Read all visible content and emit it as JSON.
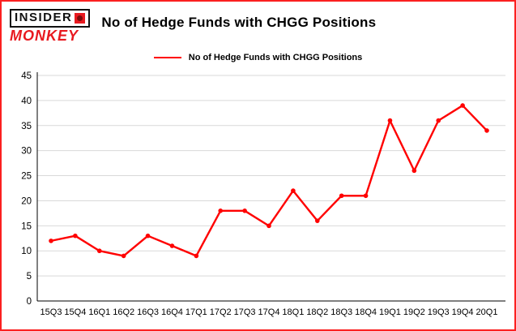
{
  "brand": {
    "line1": "INSIDER",
    "line2": "MONKEY",
    "red": "#e8191f"
  },
  "header": {
    "title": "No of Hedge Funds with CHGG Positions"
  },
  "legend": {
    "label": "No of Hedge Funds with CHGG Positions",
    "color": "#ff0000"
  },
  "chart_data": {
    "type": "line",
    "title": "No of Hedge Funds with CHGG Positions",
    "categories": [
      "15Q3",
      "15Q4",
      "16Q1",
      "16Q2",
      "16Q3",
      "16Q4",
      "17Q1",
      "17Q2",
      "17Q3",
      "17Q4",
      "18Q1",
      "18Q2",
      "18Q3",
      "18Q4",
      "19Q1",
      "19Q2",
      "19Q3",
      "19Q4",
      "20Q1"
    ],
    "values": [
      12,
      13,
      10,
      9,
      13,
      11,
      9,
      18,
      18,
      15,
      22,
      16,
      21,
      21,
      36,
      26,
      36,
      39,
      34
    ],
    "xlabel": "",
    "ylabel": "",
    "ylim": [
      0,
      45
    ],
    "ytick_step": 5,
    "yticks": [
      0,
      5,
      10,
      15,
      20,
      25,
      30,
      35,
      40,
      45
    ],
    "line_color": "#ff0000",
    "grid_color": "#d9d9d9",
    "axis_color": "#000000",
    "grid": true,
    "legend_position": "top-center"
  }
}
